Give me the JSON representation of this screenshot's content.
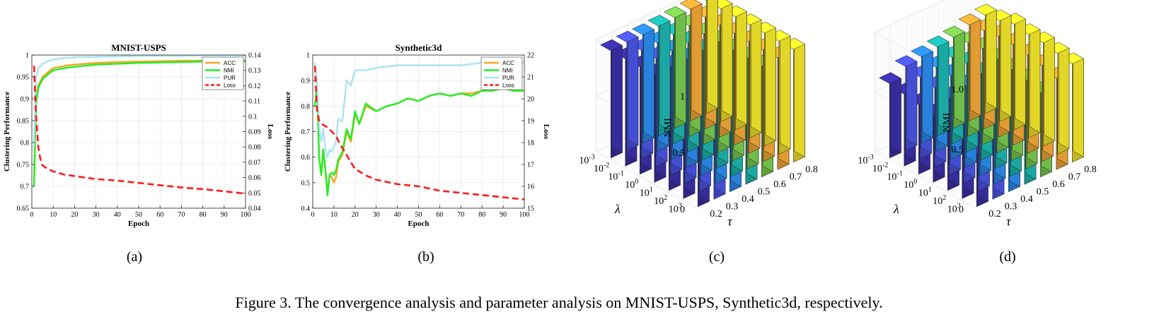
{
  "caption": "Figure 3. The convergence analysis and parameter analysis on MNIST-USPS, Synthetic3d, respectively.",
  "colors": {
    "acc": "#f5a623",
    "nmi": "#22ee22",
    "pur": "#a8e4f0",
    "loss": "#ff1a1a",
    "bars": [
      "#3b2fa8",
      "#4a55e8",
      "#2a8cf0",
      "#1cb8b0",
      "#7acc4e",
      "#f6a935",
      "#f6e92a"
    ]
  },
  "chart_data": [
    {
      "type": "line",
      "sublabel": "(a)",
      "title": "MNIST-USPS",
      "xlabel": "Epoch",
      "ylabel": "Clustering Performance",
      "y2label": "Loss",
      "xlim": [
        0,
        100
      ],
      "ylim": [
        0.65,
        1
      ],
      "y2lim": [
        0.04,
        0.14
      ],
      "xticks": [
        0,
        10,
        20,
        30,
        40,
        50,
        60,
        70,
        80,
        90,
        100
      ],
      "yticks": [
        "0.65",
        "0.7",
        "0.75",
        "0.8",
        "0.85",
        "0.9",
        "0.95",
        "1"
      ],
      "y2ticks": [
        "0.04",
        "0.05",
        "0.06",
        "0.07",
        "0.08",
        "0.09",
        "0.1",
        "0.11",
        "0.12",
        "0.13",
        "0.14"
      ],
      "legend": [
        "ACC",
        "NMI",
        "PUR",
        "Loss"
      ],
      "legend_position": "top-right",
      "series": [
        {
          "name": "ACC",
          "axis": "left",
          "x": [
            1,
            2,
            3,
            5,
            8,
            10,
            15,
            20,
            30,
            40,
            50,
            60,
            70,
            80,
            90,
            100
          ],
          "values": [
            0.7,
            0.9,
            0.93,
            0.95,
            0.963,
            0.97,
            0.975,
            0.978,
            0.982,
            0.984,
            0.985,
            0.986,
            0.987,
            0.987,
            0.987,
            0.987
          ]
        },
        {
          "name": "NMI",
          "axis": "left",
          "x": [
            1,
            2,
            3,
            5,
            8,
            10,
            15,
            20,
            30,
            40,
            50,
            60,
            70,
            80,
            90,
            100
          ],
          "values": [
            0.7,
            0.89,
            0.925,
            0.945,
            0.958,
            0.965,
            0.97,
            0.973,
            0.978,
            0.98,
            0.982,
            0.983,
            0.984,
            0.985,
            0.985,
            0.986
          ]
        },
        {
          "name": "PUR",
          "axis": "left",
          "x": [
            1,
            2,
            3,
            5,
            8,
            10,
            15,
            20,
            30,
            40,
            50,
            60,
            70,
            80,
            90,
            100
          ],
          "values": [
            0.79,
            0.95,
            0.97,
            0.98,
            0.987,
            0.99,
            0.993,
            0.995,
            0.996,
            0.997,
            0.998,
            0.998,
            0.998,
            0.999,
            0.999,
            0.999
          ]
        },
        {
          "name": "Loss",
          "axis": "right",
          "x": [
            1,
            2,
            3,
            4,
            5,
            7,
            10,
            15,
            20,
            30,
            40,
            50,
            60,
            70,
            80,
            90,
            100
          ],
          "values": [
            0.133,
            0.1,
            0.08,
            0.072,
            0.068,
            0.066,
            0.064,
            0.062,
            0.061,
            0.059,
            0.058,
            0.0565,
            0.055,
            0.0535,
            0.0525,
            0.051,
            0.0495
          ]
        }
      ]
    },
    {
      "type": "line",
      "sublabel": "(b)",
      "title": "Synthetic3d",
      "xlabel": "Epoch",
      "ylabel": "Clustering Performance",
      "y2label": "Loss",
      "xlim": [
        0,
        100
      ],
      "ylim": [
        0.4,
        1
      ],
      "y2lim": [
        15,
        22
      ],
      "xticks": [
        0,
        10,
        20,
        30,
        40,
        50,
        60,
        70,
        80,
        90,
        100
      ],
      "yticks": [
        "0.4",
        "0.5",
        "0.6",
        "0.7",
        "0.8",
        "0.9",
        "1"
      ],
      "y2ticks": [
        "15",
        "16",
        "17",
        "18",
        "19",
        "20",
        "21",
        "22"
      ],
      "legend": [
        "ACC",
        "NMI",
        "PUR",
        "Loss"
      ],
      "legend_position": "top-right",
      "series": [
        {
          "name": "ACC",
          "axis": "left",
          "x": [
            1,
            2,
            3,
            4,
            5,
            6,
            7,
            8,
            9,
            10,
            11,
            12,
            14,
            16,
            18,
            20,
            22,
            25,
            30,
            35,
            40,
            45,
            50,
            55,
            60,
            65,
            70,
            75,
            80,
            85,
            90,
            95,
            100
          ],
          "values": [
            0.8,
            0.88,
            0.6,
            0.53,
            0.63,
            0.55,
            0.46,
            0.53,
            0.52,
            0.5,
            0.52,
            0.58,
            0.61,
            0.7,
            0.66,
            0.77,
            0.73,
            0.8,
            0.78,
            0.8,
            0.81,
            0.83,
            0.82,
            0.84,
            0.85,
            0.84,
            0.85,
            0.85,
            0.86,
            0.86,
            0.87,
            0.86,
            0.86
          ]
        },
        {
          "name": "NMI",
          "axis": "left",
          "x": [
            1,
            2,
            3,
            4,
            5,
            6,
            7,
            8,
            9,
            10,
            11,
            12,
            14,
            16,
            18,
            20,
            22,
            25,
            30,
            35,
            40,
            45,
            50,
            55,
            60,
            65,
            70,
            75,
            80,
            85,
            90,
            95,
            100
          ],
          "values": [
            0.8,
            0.88,
            0.6,
            0.53,
            0.63,
            0.55,
            0.45,
            0.53,
            0.54,
            0.53,
            0.55,
            0.59,
            0.62,
            0.71,
            0.67,
            0.78,
            0.73,
            0.81,
            0.78,
            0.8,
            0.81,
            0.83,
            0.82,
            0.84,
            0.85,
            0.84,
            0.85,
            0.84,
            0.86,
            0.86,
            0.87,
            0.86,
            0.86
          ]
        },
        {
          "name": "PUR",
          "axis": "left",
          "x": [
            1,
            2,
            3,
            4,
            5,
            6,
            7,
            8,
            9,
            10,
            11,
            12,
            14,
            16,
            18,
            20,
            25,
            30,
            40,
            50,
            60,
            70,
            80,
            90,
            100
          ],
          "values": [
            0.97,
            0.9,
            0.72,
            0.66,
            0.71,
            0.63,
            0.6,
            0.63,
            0.62,
            0.64,
            0.66,
            0.75,
            0.74,
            0.9,
            0.88,
            0.94,
            0.94,
            0.95,
            0.96,
            0.96,
            0.96,
            0.96,
            0.97,
            0.97,
            0.97
          ]
        },
        {
          "name": "Loss",
          "axis": "right",
          "x": [
            1,
            2,
            3,
            5,
            7,
            9,
            11,
            13,
            15,
            18,
            20,
            25,
            30,
            40,
            50,
            60,
            70,
            80,
            90,
            100
          ],
          "values": [
            21.5,
            19.5,
            19.0,
            18.8,
            18.7,
            18.5,
            18.3,
            17.9,
            17.6,
            17.1,
            16.8,
            16.5,
            16.3,
            16.1,
            16.0,
            15.8,
            15.7,
            15.6,
            15.5,
            15.4
          ]
        }
      ]
    },
    {
      "type": "bar3d",
      "sublabel": "(c)",
      "zlabel": "NMI",
      "xlabel": "λ",
      "ylabel": "τ",
      "zticks": [
        "0",
        "0.5",
        "1"
      ],
      "lambda_ticks": [
        [
          "10",
          "-3"
        ],
        [
          "10",
          "-2"
        ],
        [
          "10",
          "-1"
        ],
        [
          "10",
          "0"
        ],
        [
          "10",
          "1"
        ],
        [
          "10",
          "2"
        ],
        [
          "10",
          "3"
        ]
      ],
      "tau_ticks": [
        "0.2",
        "0.3",
        "0.4",
        "0.5",
        "0.6",
        "0.7",
        "0.8"
      ],
      "values": [
        [
          0.95,
          0.96,
          0.96,
          0.97,
          0.98,
          0.99,
          1.0
        ],
        [
          0.95,
          0.96,
          0.96,
          0.97,
          0.98,
          0.99,
          1.0
        ],
        [
          0.95,
          0.96,
          0.96,
          0.97,
          0.98,
          0.99,
          1.0
        ],
        [
          0.95,
          0.96,
          0.96,
          0.97,
          0.98,
          0.99,
          1.0
        ],
        [
          0.95,
          0.96,
          0.96,
          0.97,
          0.98,
          0.99,
          1.0
        ],
        [
          0.95,
          0.96,
          0.96,
          0.97,
          0.98,
          0.99,
          1.0
        ],
        [
          0.95,
          0.96,
          0.96,
          0.97,
          0.98,
          0.99,
          1.0
        ]
      ]
    },
    {
      "type": "bar3d",
      "sublabel": "(d)",
      "zlabel": "NMI",
      "xlabel": "λ",
      "ylabel": "τ",
      "zticks": [
        "0",
        "0.5",
        "1.0"
      ],
      "lambda_ticks": [
        [
          "10",
          "-3"
        ],
        [
          "10",
          "-2"
        ],
        [
          "10",
          "-1"
        ],
        [
          "10",
          "0"
        ],
        [
          "10",
          "1"
        ],
        [
          "10",
          "2"
        ],
        [
          "10",
          "3"
        ]
      ],
      "tau_ticks": [
        "0.2",
        "0.3",
        "0.4",
        "0.5",
        "0.6",
        "0.7",
        "0.8"
      ],
      "values": [
        [
          0.62,
          0.7,
          0.72,
          0.74,
          0.76,
          0.8,
          0.82
        ],
        [
          0.6,
          0.68,
          0.7,
          0.72,
          0.78,
          0.82,
          0.84
        ],
        [
          0.58,
          0.66,
          0.7,
          0.74,
          0.8,
          0.84,
          0.88
        ],
        [
          0.56,
          0.64,
          0.68,
          0.72,
          0.78,
          0.84,
          0.86
        ],
        [
          0.52,
          0.6,
          0.66,
          0.7,
          0.76,
          0.82,
          0.86
        ],
        [
          0.48,
          0.56,
          0.62,
          0.68,
          0.74,
          0.8,
          0.84
        ],
        [
          0.44,
          0.52,
          0.58,
          0.64,
          0.7,
          0.76,
          0.82
        ]
      ]
    }
  ]
}
